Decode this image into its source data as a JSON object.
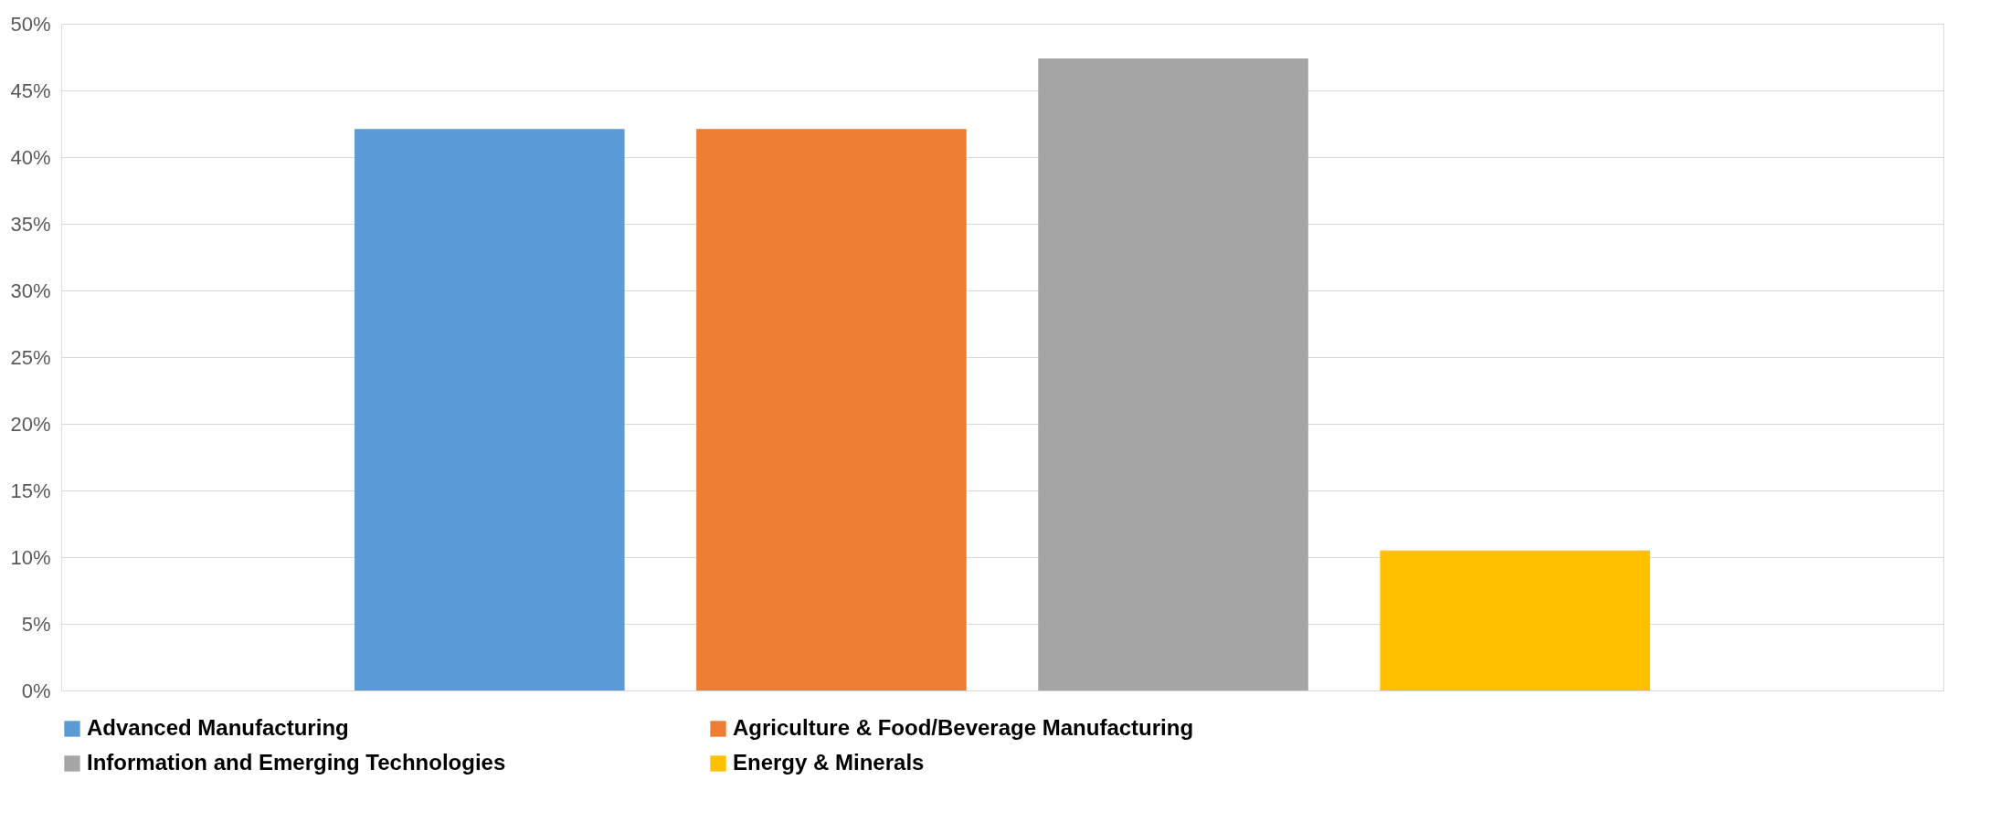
{
  "chart_data": {
    "type": "bar",
    "categories": [
      null
    ],
    "series": [
      {
        "name": "Advanced Manufacturing",
        "color": "#5b9bd5",
        "values": [
          42.1
        ]
      },
      {
        "name": "Agriculture & Food/Beverage Manufacturing",
        "color": "#ed7d31",
        "values": [
          42.1
        ]
      },
      {
        "name": "Information and Emerging Technologies",
        "color": "#a5a5a5",
        "values": [
          47.4
        ]
      },
      {
        "name": "Energy & Minerals",
        "color": "#ffc000",
        "values": [
          10.5
        ]
      }
    ],
    "ylim": [
      0,
      50
    ],
    "yticks": [
      {
        "value": 0,
        "label": "0%"
      },
      {
        "value": 5,
        "label": "5%"
      },
      {
        "value": 10,
        "label": "10%"
      },
      {
        "value": 15,
        "label": "15%"
      },
      {
        "value": 20,
        "label": "20%"
      },
      {
        "value": 25,
        "label": "25%"
      },
      {
        "value": 30,
        "label": "30%"
      },
      {
        "value": 35,
        "label": "35%"
      },
      {
        "value": 40,
        "label": "40%"
      },
      {
        "value": 45,
        "label": "45%"
      },
      {
        "value": 50,
        "label": "50%"
      }
    ],
    "grid": "y",
    "legend": "bottom",
    "tick_labels": "y"
  }
}
